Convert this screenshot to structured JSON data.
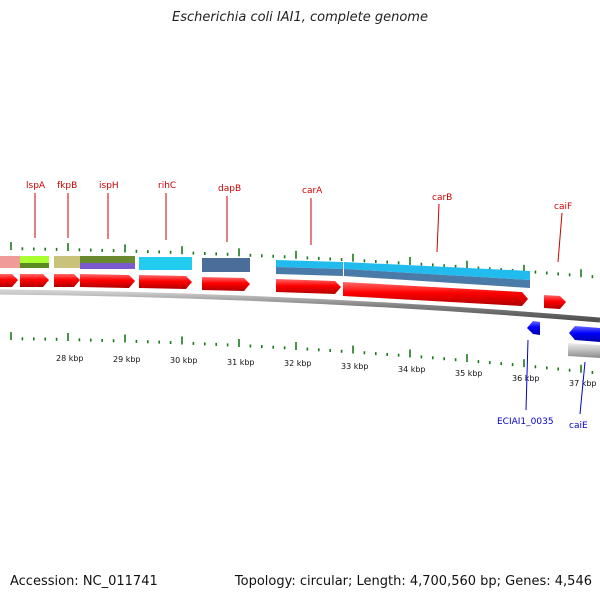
{
  "title": "Escherichia coli IAI1, complete genome",
  "footer": {
    "accession": "Accession: NC_011741",
    "summary": "Topology: circular; Length: 4,700,560 bp; Genes: 4,546"
  },
  "ruler": {
    "tick_labels": [
      "28 kbp",
      "29 kbp",
      "30 kbp",
      "31 kbp",
      "32 kbp",
      "33 kbp",
      "34 kbp",
      "35 kbp",
      "36 kbp",
      "37 kbp"
    ]
  },
  "genes_forward": [
    {
      "label": "lspA"
    },
    {
      "label": "fkpB"
    },
    {
      "label": "ispH"
    },
    {
      "label": "rihC"
    },
    {
      "label": "dapB"
    },
    {
      "label": "carA"
    },
    {
      "label": "carB"
    },
    {
      "label": "caiF"
    }
  ],
  "genes_reverse": [
    {
      "label": "ECIAI1_0035"
    },
    {
      "label": "caiE"
    }
  ],
  "colors": {
    "forward_label": "#cc0000",
    "reverse_label": "#0000cc",
    "cds_red": "#ff0000",
    "cds_blue": "#0000ff",
    "tick_green": "#1a7a1a",
    "backbone": "#808080"
  }
}
